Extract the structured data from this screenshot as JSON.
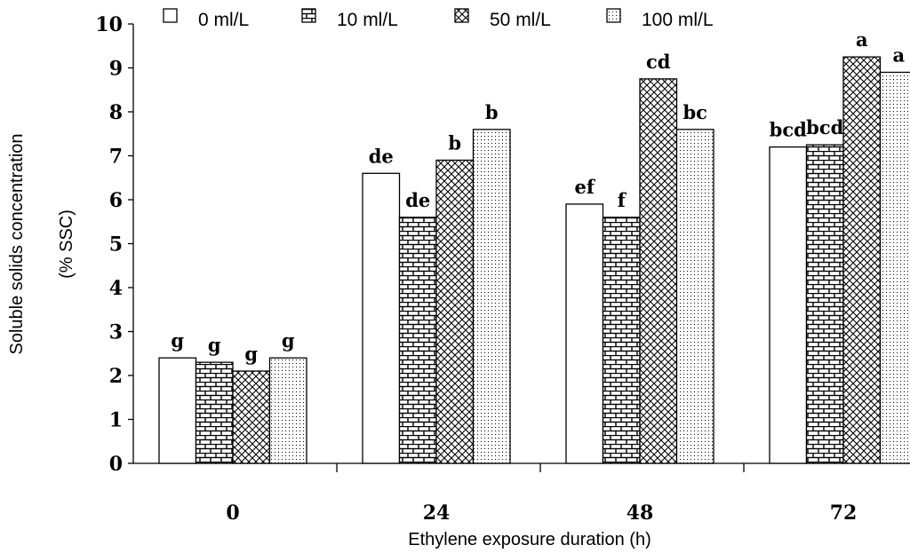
{
  "chart_data": {
    "type": "bar",
    "categories": [
      "0",
      "24",
      "48",
      "72"
    ],
    "xlabel": "Ethylene exposure duration (h)",
    "ylabel_lines": [
      "Soluble solids concentration",
      "(% SSC)"
    ],
    "ylim": [
      0,
      10
    ],
    "yticks": [
      "0",
      "1",
      "2",
      "3",
      "4",
      "5",
      "6",
      "7",
      "8",
      "9",
      "10"
    ],
    "legend_position": "top",
    "grid": false,
    "series": [
      {
        "name": "0 ml/L",
        "pattern": "none",
        "values": [
          2.4,
          6.6,
          5.9,
          7.2
        ],
        "labels": [
          "g",
          "de",
          "ef",
          "bcd"
        ]
      },
      {
        "name": "10 ml/L",
        "pattern": "brick",
        "values": [
          2.3,
          5.6,
          5.6,
          7.25
        ],
        "labels": [
          "g",
          "de",
          "f",
          "bcd"
        ]
      },
      {
        "name": "50 ml/L",
        "pattern": "crosshatch",
        "values": [
          2.1,
          6.9,
          8.75,
          9.25
        ],
        "labels": [
          "g",
          "b",
          "cd",
          "a"
        ]
      },
      {
        "name": "100 ml/L",
        "pattern": "dots",
        "values": [
          2.4,
          7.6,
          7.6,
          8.9
        ],
        "labels": [
          "g",
          "b",
          "bc",
          "a"
        ]
      }
    ]
  }
}
